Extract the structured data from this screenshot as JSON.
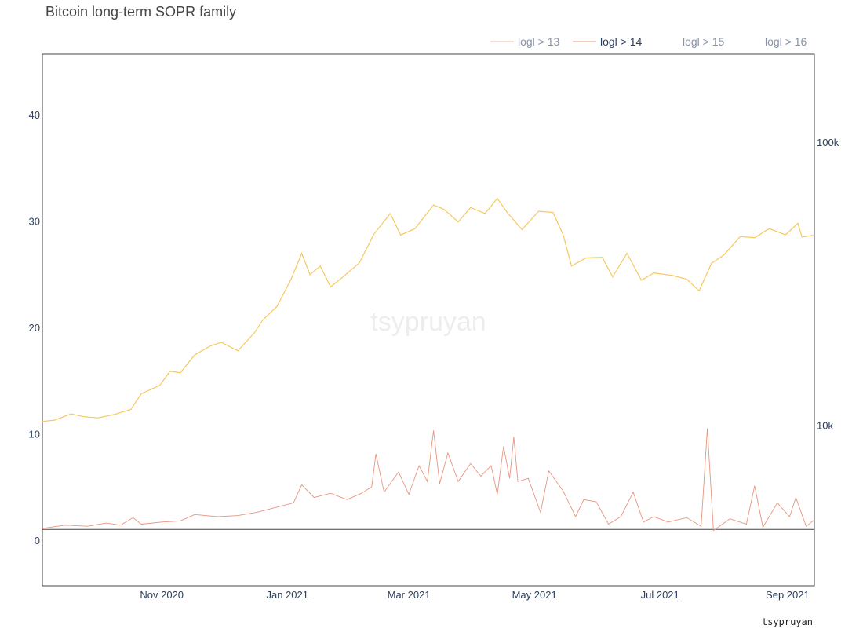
{
  "chart_data": {
    "type": "line",
    "title": "Bitcoin long-term SOPR family",
    "watermark": "tsypruyan",
    "credit": "tsypruyan",
    "x_range": [
      "2020-09-04",
      "2021-09-14"
    ],
    "x_ticks": [
      {
        "date": "2020-11-01",
        "label": "Nov 2020"
      },
      {
        "date": "2021-01-01",
        "label": "Jan 2021"
      },
      {
        "date": "2021-03-01",
        "label": "Mar 2021"
      },
      {
        "date": "2021-05-01",
        "label": "May 2021"
      },
      {
        "date": "2021-07-01",
        "label": "Jul 2021"
      },
      {
        "date": "2021-09-01",
        "label": "Sep 2021"
      }
    ],
    "y_left": {
      "range": [
        -4.3,
        45.7
      ],
      "ticks": [
        0,
        10,
        20,
        30,
        40
      ]
    },
    "y_right": {
      "scale": "log",
      "range": [
        2700,
        205000
      ],
      "ticks": [
        {
          "value": 10000,
          "label": "10k"
        },
        {
          "value": 100000,
          "label": "100k"
        }
      ]
    },
    "reference_line_y": 1,
    "legend": {
      "placement": "top-right",
      "entries": [
        {
          "label": "logl > 13",
          "color": "#f2b5a8",
          "visible": true,
          "active": false
        },
        {
          "label": "logl > 14",
          "color": "#e8957f",
          "visible": true,
          "active": true
        },
        {
          "label": "logl > 15",
          "color": "#888888",
          "visible": false,
          "active": false
        },
        {
          "label": "logl > 16",
          "color": "#888888",
          "visible": false,
          "active": false
        }
      ]
    },
    "price_series": {
      "axis": "right",
      "color": "#f6c85f",
      "points": [
        [
          "2020-09-04",
          10300
        ],
        [
          "2020-09-10",
          10400
        ],
        [
          "2020-09-18",
          10950
        ],
        [
          "2020-09-24",
          10700
        ],
        [
          "2020-10-01",
          10600
        ],
        [
          "2020-10-09",
          10900
        ],
        [
          "2020-10-17",
          11350
        ],
        [
          "2020-10-22",
          12900
        ],
        [
          "2020-10-31",
          13800
        ],
        [
          "2020-11-05",
          15500
        ],
        [
          "2020-11-10",
          15300
        ],
        [
          "2020-11-17",
          17700
        ],
        [
          "2020-11-25",
          19100
        ],
        [
          "2020-11-30",
          19600
        ],
        [
          "2020-12-08",
          18300
        ],
        [
          "2020-12-16",
          21200
        ],
        [
          "2020-12-20",
          23500
        ],
        [
          "2020-12-27",
          26300
        ],
        [
          "2021-01-03",
          33000
        ],
        [
          "2021-01-08",
          40500
        ],
        [
          "2021-01-12",
          34000
        ],
        [
          "2021-01-17",
          36500
        ],
        [
          "2021-01-22",
          30800
        ],
        [
          "2021-01-28",
          33400
        ],
        [
          "2021-02-05",
          37500
        ],
        [
          "2021-02-12",
          47300
        ],
        [
          "2021-02-20",
          56000
        ],
        [
          "2021-02-25",
          47000
        ],
        [
          "2021-03-04",
          49500
        ],
        [
          "2021-03-13",
          60000
        ],
        [
          "2021-03-18",
          58000
        ],
        [
          "2021-03-25",
          52300
        ],
        [
          "2021-03-31",
          58800
        ],
        [
          "2021-04-07",
          56000
        ],
        [
          "2021-04-13",
          63300
        ],
        [
          "2021-04-18",
          56200
        ],
        [
          "2021-04-25",
          49100
        ],
        [
          "2021-05-03",
          57000
        ],
        [
          "2021-05-10",
          56500
        ],
        [
          "2021-05-15",
          47000
        ],
        [
          "2021-05-19",
          36500
        ],
        [
          "2021-05-26",
          39000
        ],
        [
          "2021-06-03",
          39200
        ],
        [
          "2021-06-08",
          33400
        ],
        [
          "2021-06-15",
          40500
        ],
        [
          "2021-06-22",
          32500
        ],
        [
          "2021-06-28",
          34500
        ],
        [
          "2021-07-07",
          33800
        ],
        [
          "2021-07-14",
          32800
        ],
        [
          "2021-07-20",
          29800
        ],
        [
          "2021-07-26",
          37300
        ],
        [
          "2021-08-01",
          39900
        ],
        [
          "2021-08-09",
          46400
        ],
        [
          "2021-08-16",
          46000
        ],
        [
          "2021-08-23",
          49500
        ],
        [
          "2021-08-31",
          47100
        ],
        [
          "2021-09-06",
          51700
        ],
        [
          "2021-09-08",
          46200
        ],
        [
          "2021-09-14",
          47000
        ]
      ]
    },
    "sopr_series": {
      "axis": "left",
      "name": "logl > 14",
      "color": "#e8957f",
      "points": [
        [
          "2020-09-04",
          1.1
        ],
        [
          "2020-09-15",
          1.4
        ],
        [
          "2020-09-26",
          1.3
        ],
        [
          "2020-10-05",
          1.6
        ],
        [
          "2020-10-12",
          1.4
        ],
        [
          "2020-10-18",
          2.1
        ],
        [
          "2020-10-22",
          1.5
        ],
        [
          "2020-11-01",
          1.7
        ],
        [
          "2020-11-10",
          1.8
        ],
        [
          "2020-11-17",
          2.4
        ],
        [
          "2020-11-28",
          2.2
        ],
        [
          "2020-12-08",
          2.3
        ],
        [
          "2020-12-17",
          2.6
        ],
        [
          "2020-12-27",
          3.1
        ],
        [
          "2021-01-04",
          3.5
        ],
        [
          "2021-01-08",
          5.2
        ],
        [
          "2021-01-14",
          4.0
        ],
        [
          "2021-01-22",
          4.4
        ],
        [
          "2021-01-30",
          3.8
        ],
        [
          "2021-02-06",
          4.4
        ],
        [
          "2021-02-11",
          5.0
        ],
        [
          "2021-02-13",
          8.1
        ],
        [
          "2021-02-17",
          4.5
        ],
        [
          "2021-02-24",
          6.4
        ],
        [
          "2021-03-01",
          4.3
        ],
        [
          "2021-03-06",
          7.0
        ],
        [
          "2021-03-10",
          5.5
        ],
        [
          "2021-03-13",
          10.3
        ],
        [
          "2021-03-16",
          5.3
        ],
        [
          "2021-03-20",
          8.2
        ],
        [
          "2021-03-25",
          5.5
        ],
        [
          "2021-03-31",
          7.2
        ],
        [
          "2021-04-05",
          6.0
        ],
        [
          "2021-04-10",
          7.0
        ],
        [
          "2021-04-13",
          4.3
        ],
        [
          "2021-04-16",
          8.8
        ],
        [
          "2021-04-19",
          5.8
        ],
        [
          "2021-04-21",
          9.7
        ],
        [
          "2021-04-23",
          5.5
        ],
        [
          "2021-04-28",
          5.8
        ],
        [
          "2021-05-04",
          2.6
        ],
        [
          "2021-05-08",
          6.5
        ],
        [
          "2021-05-15",
          4.6
        ],
        [
          "2021-05-21",
          2.2
        ],
        [
          "2021-05-25",
          3.8
        ],
        [
          "2021-05-31",
          3.6
        ],
        [
          "2021-06-06",
          1.5
        ],
        [
          "2021-06-12",
          2.2
        ],
        [
          "2021-06-18",
          4.5
        ],
        [
          "2021-06-23",
          1.7
        ],
        [
          "2021-06-28",
          2.2
        ],
        [
          "2021-07-05",
          1.7
        ],
        [
          "2021-07-14",
          2.1
        ],
        [
          "2021-07-21",
          1.3
        ],
        [
          "2021-07-24",
          10.5
        ],
        [
          "2021-07-27",
          0.9
        ],
        [
          "2021-08-04",
          2.0
        ],
        [
          "2021-08-12",
          1.5
        ],
        [
          "2021-08-16",
          5.1
        ],
        [
          "2021-08-20",
          1.2
        ],
        [
          "2021-08-27",
          3.5
        ],
        [
          "2021-09-02",
          2.2
        ],
        [
          "2021-09-05",
          4.0
        ],
        [
          "2021-09-10",
          1.3
        ],
        [
          "2021-09-14",
          1.9
        ]
      ]
    }
  }
}
